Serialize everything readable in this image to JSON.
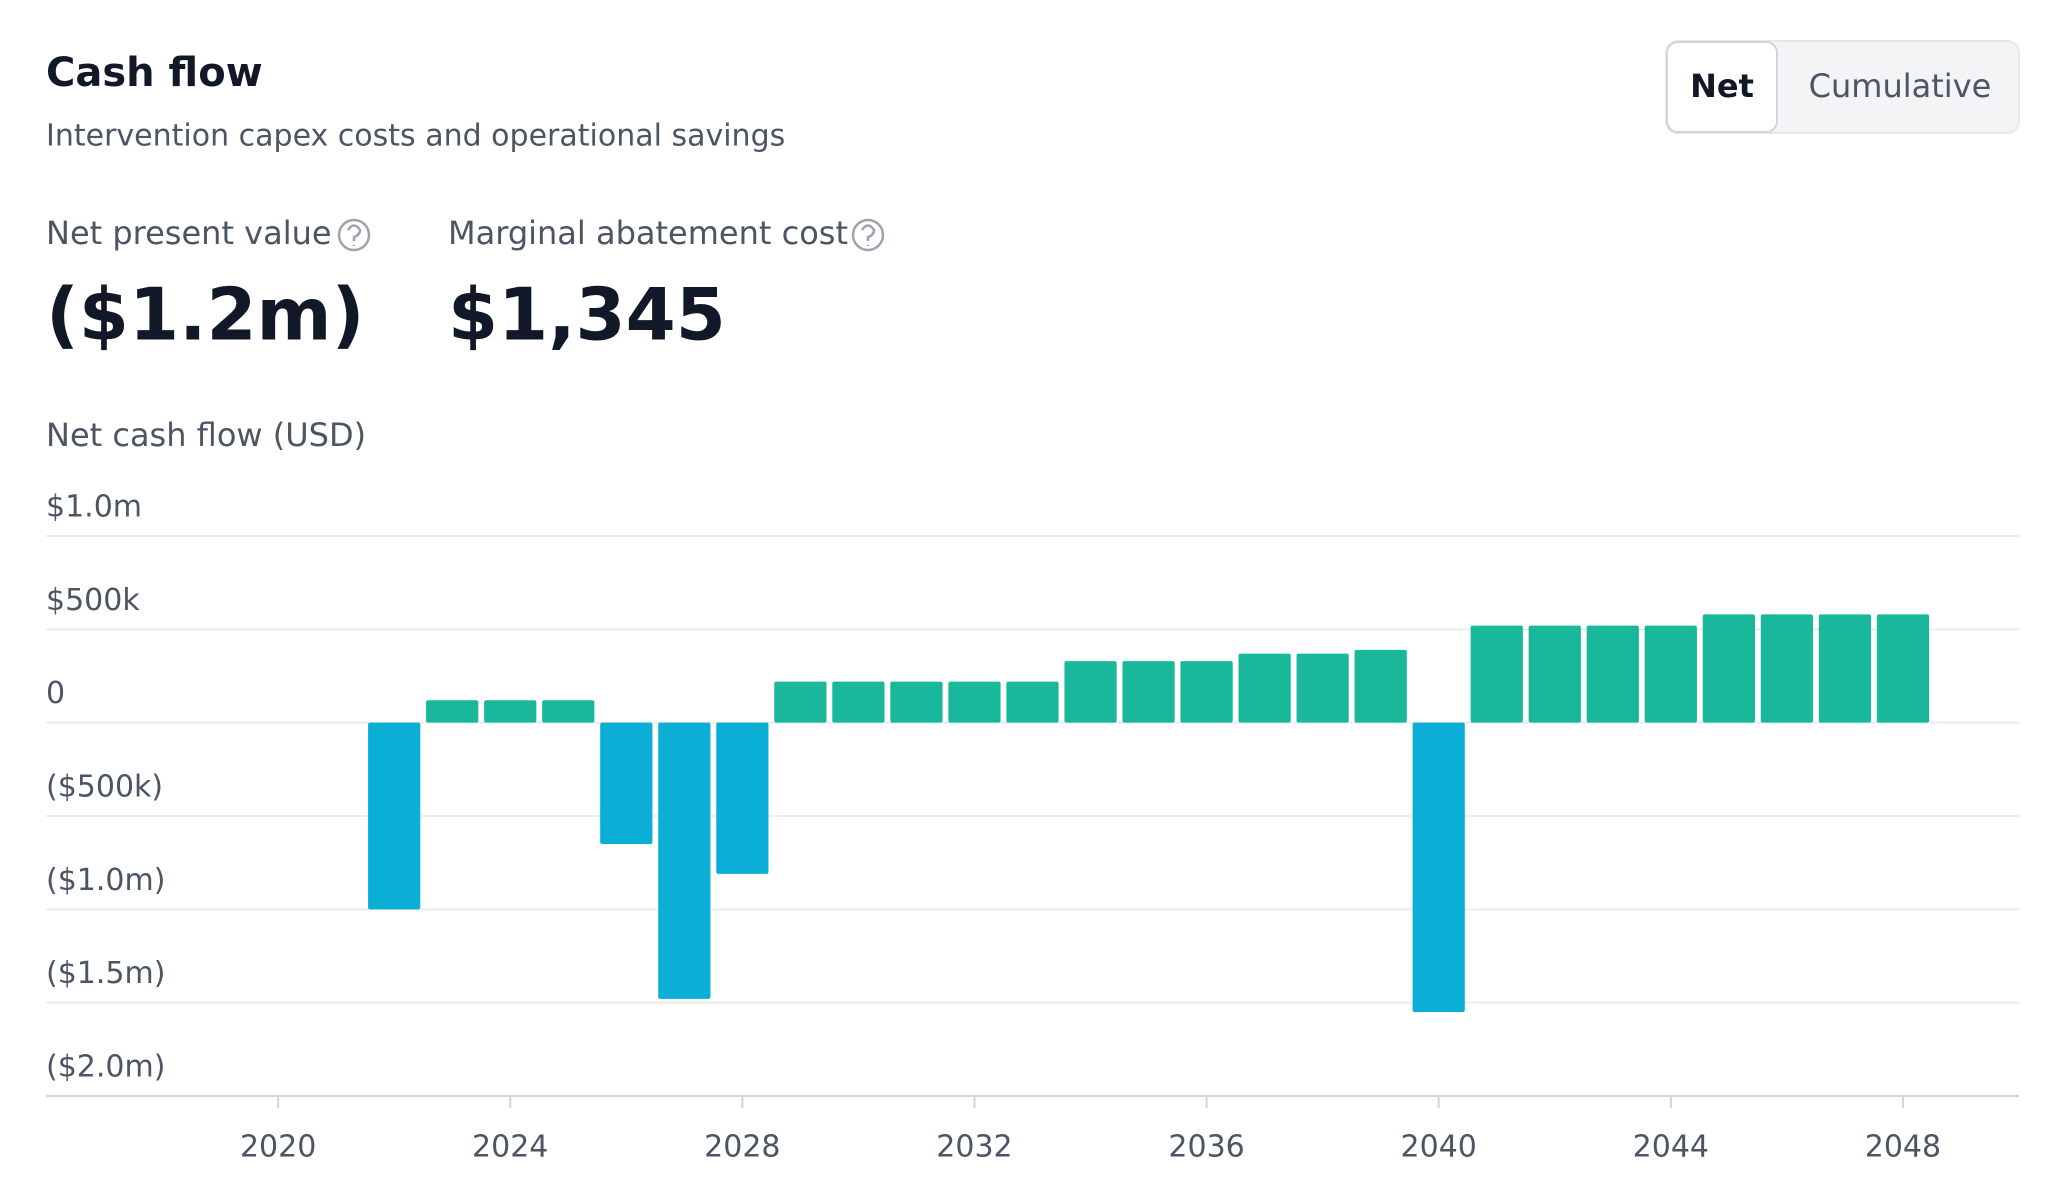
{
  "header": {
    "title": "Cash flow",
    "subtitle": "Intervention capex costs and operational savings"
  },
  "toggle": {
    "options": [
      "Net",
      "Cumulative"
    ],
    "selected": "Net"
  },
  "metrics": [
    {
      "label": "Net present value",
      "value": "($1.2m)"
    },
    {
      "label": "Marginal abatement cost",
      "value": "$1,345"
    }
  ],
  "chart_data": {
    "type": "bar",
    "y_label": "Net cash flow (USD)",
    "x": [
      2022,
      2023,
      2024,
      2025,
      2026,
      2027,
      2028,
      2029,
      2030,
      2031,
      2032,
      2033,
      2034,
      2035,
      2036,
      2037,
      2038,
      2039,
      2040,
      2041,
      2042,
      2043,
      2044,
      2045,
      2046,
      2047,
      2048
    ],
    "values": [
      -1000000,
      120000,
      120000,
      120000,
      -650000,
      -1480000,
      -810000,
      220000,
      220000,
      220000,
      220000,
      220000,
      330000,
      330000,
      330000,
      370000,
      370000,
      390000,
      -1550000,
      520000,
      520000,
      520000,
      520000,
      580000,
      580000,
      580000,
      580000
    ],
    "positive_color": "#1ab89a",
    "negative_color": "#0bafd6",
    "xlim": [
      2016,
      2050
    ],
    "xticks": [
      2020,
      2024,
      2028,
      2032,
      2036,
      2040,
      2044,
      2048
    ],
    "ylim": [
      -2000000,
      1000000
    ],
    "yticks": [
      {
        "value": 1000000,
        "label": "$1.0m"
      },
      {
        "value": 500000,
        "label": "$500k"
      },
      0,
      {
        "value": -500000,
        "label": "($500k)"
      },
      {
        "value": -1000000,
        "label": "($1.0m)"
      },
      {
        "value": -1500000,
        "label": "($1.5m)"
      },
      {
        "value": -2000000,
        "label": "($2.0m)"
      }
    ],
    "grid": true
  }
}
